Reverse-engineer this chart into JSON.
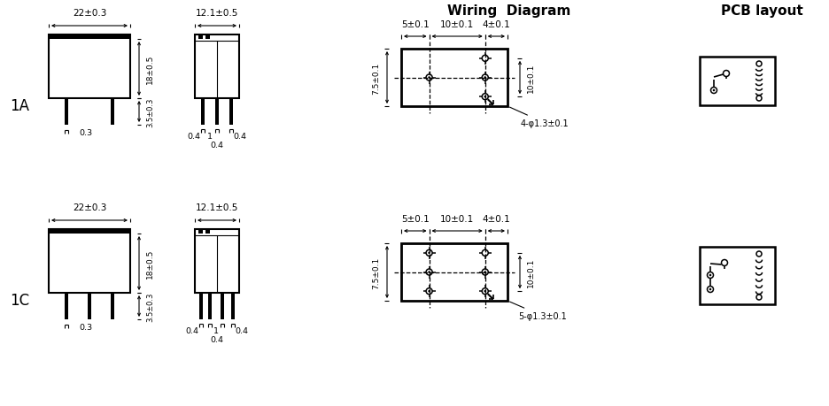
{
  "bg_color": "#ffffff",
  "wiring_title": "Wiring  Diagram",
  "pcb_title": "PCB layout",
  "row_labels": [
    "1A",
    "1C"
  ],
  "dim_22": "22±0.3",
  "dim_121": "12.1±0.5",
  "dim_18": "18±0.5",
  "dim_35": "3.5±0.3",
  "dim_03": "0.3",
  "dim_04": "0.4",
  "dim_1": "1",
  "dim_5": "5±0.1",
  "dim_10": "10±0.1",
  "dim_4": "4±0.1",
  "dim_75": "7.5±0.1",
  "dim_10r": "10±0.1",
  "dim_4holes_1a": "4-φ1.3±0.1",
  "dim_5holes_1c": "5-φ1.3±0.1"
}
